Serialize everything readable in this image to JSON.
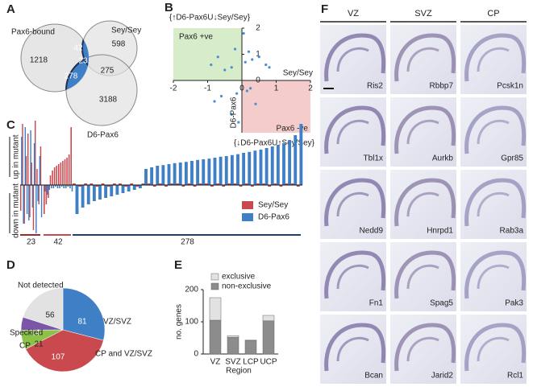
{
  "panel_labels": [
    "A",
    "B",
    "C",
    "D",
    "E",
    "F"
  ],
  "venn": {
    "set_labels": [
      "Pax6-bound",
      "Sey/Sey",
      "D6-Pax6"
    ],
    "counts": {
      "pax6_only": 1218,
      "sey_only": 598,
      "pax6_sey": 42,
      "all": 23,
      "pax6_d6": 278,
      "sey_d6": 275,
      "d6_only": 3188
    }
  },
  "scatter": {
    "x_label": "Sey/Sey",
    "y_label": "D6-Pax6",
    "quadrant_labels": [
      "Pax6 +ve",
      "Pax6 -ve"
    ],
    "set_labels": [
      "{↑D6-Pax6U↓Sey/Sey}",
      "{↓D6-Pax6U↑Sey/Sey}"
    ],
    "xlim": [
      -2,
      2
    ],
    "ylim": [
      -2,
      2
    ],
    "xticks": [
      -2,
      -1,
      0,
      1,
      2
    ],
    "yticks": [
      0,
      1,
      2
    ],
    "color": "#4a8fcf",
    "x": [
      -0.9,
      -0.7,
      -0.5,
      -0.3,
      -0.2,
      -0.15,
      0.1,
      0.2,
      0.3,
      0.5,
      0.7,
      0.8,
      -0.6,
      -0.8,
      0.15,
      0.4,
      -0.3,
      0.05,
      -0.1,
      0.25
    ],
    "y": [
      0.6,
      0.9,
      0.4,
      0.5,
      1.2,
      -0.5,
      0.7,
      1.1,
      0.8,
      0.9,
      0.6,
      0.5,
      -0.6,
      -0.8,
      -0.4,
      -0.9,
      -1.3,
      1.8,
      -1.6,
      -0.3
    ]
  },
  "waterfall": {
    "y_labels": [
      "up in mutant",
      "down in mutant"
    ],
    "ylim": [
      -1.5,
      2
    ],
    "series": [
      {
        "name": "Sey/Sey",
        "color": "#c9494f"
      },
      {
        "name": "D6-Pax6",
        "color": "#3f7fc6"
      }
    ],
    "groups": [
      {
        "label": 23,
        "color": "#9b2a2f",
        "values": [
          [
            -0.8,
            1.9,
            -1.2,
            0.9,
            1.6,
            -1.0,
            0.7,
            -1.4,
            2.0,
            0.5,
            -0.6,
            1.2
          ],
          [
            1.5,
            -1.2,
            1.8,
            -0.9,
            -1.1,
            1.7,
            -0.7,
            1.3,
            -1.5,
            -0.5,
            0.9,
            -1.0
          ]
        ]
      },
      {
        "label": 42,
        "color": "#c9494f",
        "values": [
          [
            -0.9,
            -0.6,
            -0.4,
            0.3,
            0.45,
            0.55,
            0.6,
            0.65,
            0.7,
            0.75,
            0.8,
            0.85,
            0.95,
            1.8
          ],
          [
            -0.2,
            -0.3,
            -0.15,
            -0.1,
            -0.1,
            -0.05,
            -0.1,
            -0.1,
            -0.05,
            -0.1,
            -0.1,
            -0.05,
            -0.1,
            -0.2
          ]
        ]
      },
      {
        "label": 278,
        "color": "#1f3f73",
        "values": [
          [
            0.05,
            -0.05,
            0.05,
            0.05,
            -0.05,
            0.05,
            -0.05,
            0.05,
            0.05,
            -0.05,
            0.05,
            -0.05,
            0.05,
            0.05,
            -0.05,
            0.05,
            -0.05,
            0.05,
            0.05,
            -0.05,
            0.05,
            -0.05,
            0.05,
            0.05,
            -0.05,
            0.05,
            -0.05,
            0.05,
            0.05,
            -0.05,
            0.05,
            -0.05,
            0.05,
            0.05,
            -0.05,
            0.05,
            -0.05,
            0.05,
            0.05,
            -0.05
          ],
          [
            -0.9,
            -0.7,
            -0.6,
            -0.5,
            -0.45,
            -0.4,
            -0.35,
            -0.3,
            -0.25,
            -0.2,
            -0.15,
            -0.1,
            0.5,
            0.55,
            0.6,
            0.62,
            0.65,
            0.68,
            0.7,
            0.72,
            0.75,
            0.78,
            0.8,
            0.82,
            0.85,
            0.88,
            0.9,
            0.93,
            0.96,
            1.0,
            1.03,
            1.07,
            1.1,
            1.15,
            1.2,
            1.25,
            1.3,
            1.4,
            1.55,
            1.9
          ]
        ]
      }
    ]
  },
  "pie": {
    "categories": [
      "VZ/SVZ",
      "CP and VZ/SVZ",
      "CP",
      "Speckled",
      "Not detected"
    ],
    "values": [
      81,
      107,
      21,
      14,
      56
    ],
    "colors": [
      "#3f7fc6",
      "#c9494f",
      "#8dc24a",
      "#7a55a8",
      "#e2e2e2"
    ]
  },
  "stacked": {
    "y_label": "no. genes",
    "x_label": "Region",
    "categories": [
      "VZ",
      "SVZ",
      "LCP",
      "UCP"
    ],
    "series": [
      {
        "name": "non-exclusive",
        "color": "#8c8c8c",
        "values": [
          105,
          52,
          42,
          103
        ]
      },
      {
        "name": "exclusive",
        "color": "#e2e2e2",
        "values": [
          70,
          5,
          1,
          17
        ]
      }
    ],
    "ylim": [
      0,
      200
    ],
    "yticks": [
      0,
      100,
      200
    ]
  },
  "images": {
    "columns": [
      "VZ",
      "SVZ",
      "CP"
    ],
    "genes": [
      [
        "Ris2",
        "Tbl1x",
        "Nedd9",
        "Fn1",
        "Bcan"
      ],
      [
        "Rbbp7",
        "Aurkb",
        "Hnrpd1",
        "Spag5",
        "Jarid2"
      ],
      [
        "Pcsk1n",
        "Gpr85",
        "Rab3a",
        "Pak3",
        "Rcl1"
      ]
    ]
  }
}
